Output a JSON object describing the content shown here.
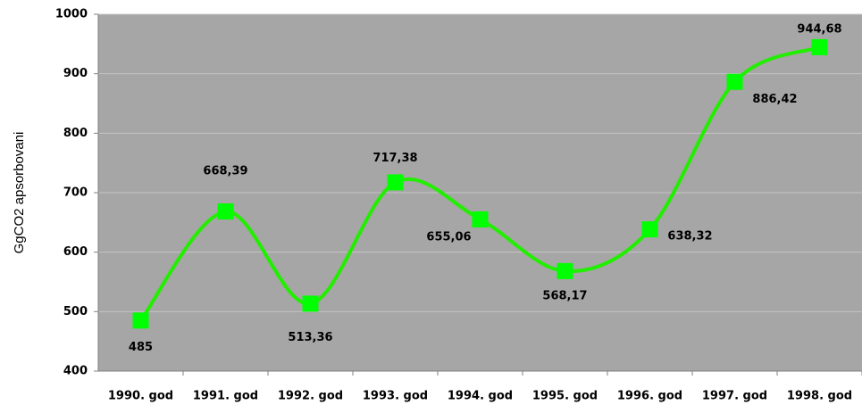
{
  "chart_data": {
    "type": "line",
    "y_axis_label": "GgCO2 apsorbovani",
    "categories": [
      "1990. god",
      "1991. god",
      "1992. god",
      "1993. god",
      "1994. god",
      "1995. god",
      "1996. god",
      "1997. god",
      "1998. god"
    ],
    "series": [
      {
        "name": "GgCO2 apsorbovani",
        "color": "#22ee00",
        "marker_color": "#00ff00",
        "values": [
          485,
          668.39,
          513.36,
          717.38,
          655.06,
          568.17,
          638.32,
          886.42,
          944.68
        ],
        "value_labels": [
          "485",
          "668,39",
          "513,36",
          "717,38",
          "655,06",
          "568,17",
          "638,32",
          "886,42",
          "944,68"
        ]
      }
    ],
    "ylim": [
      400,
      1000
    ],
    "yticks": [
      400,
      500,
      600,
      700,
      800,
      900,
      1000
    ],
    "grid": true,
    "smooth": true
  }
}
